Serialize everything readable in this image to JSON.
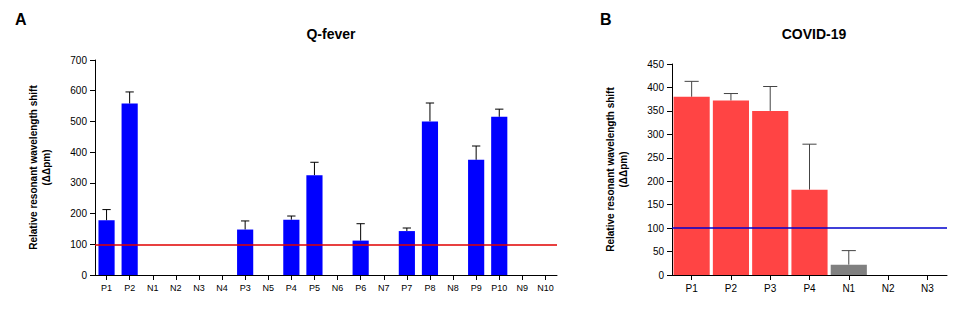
{
  "chart_data": [
    {
      "type": "bar",
      "panel": "A",
      "title": "Q-fever",
      "ylabel": "Relative resonant wavelength shift\n(ΔΔpm)",
      "categories": [
        "P1",
        "P2",
        "N1",
        "N2",
        "N3",
        "N4",
        "P3",
        "N5",
        "P4",
        "P5",
        "N6",
        "P6",
        "N7",
        "P7",
        "P8",
        "N8",
        "P9",
        "P10",
        "N9",
        "N10"
      ],
      "values": [
        178,
        558,
        0,
        0,
        0,
        0,
        148,
        0,
        180,
        325,
        0,
        112,
        0,
        143,
        500,
        0,
        375,
        515,
        0,
        0
      ],
      "errors": [
        35,
        38,
        0,
        0,
        0,
        0,
        28,
        0,
        12,
        42,
        0,
        55,
        0,
        10,
        60,
        0,
        45,
        25,
        0,
        0
      ],
      "color": "#0000ff",
      "threshold": {
        "value": 100,
        "color": "#e00000"
      },
      "ylim": [
        0,
        700
      ],
      "yticks": [
        0,
        100,
        200,
        300,
        400,
        500,
        600,
        700
      ],
      "grid": false
    },
    {
      "type": "bar",
      "panel": "B",
      "title": "COVID-19",
      "ylabel": "Relative resonant wavelength shift\n(ΔΔpm)",
      "categories": [
        "P1",
        "P2",
        "P3",
        "P4",
        "N1",
        "N2",
        "N3"
      ],
      "values": [
        380,
        372,
        350,
        182,
        22,
        0,
        0
      ],
      "errors": [
        33,
        15,
        52,
        97,
        30,
        0,
        0
      ],
      "colors": [
        "#ff4444",
        "#ff4444",
        "#ff4444",
        "#ff4444",
        "#808080",
        "#808080",
        "#808080"
      ],
      "threshold": {
        "value": 100,
        "color": "#0000cc"
      },
      "ylim": [
        0,
        450
      ],
      "yticks": [
        0,
        50,
        100,
        150,
        200,
        250,
        300,
        350,
        400,
        450
      ],
      "grid": false
    }
  ]
}
